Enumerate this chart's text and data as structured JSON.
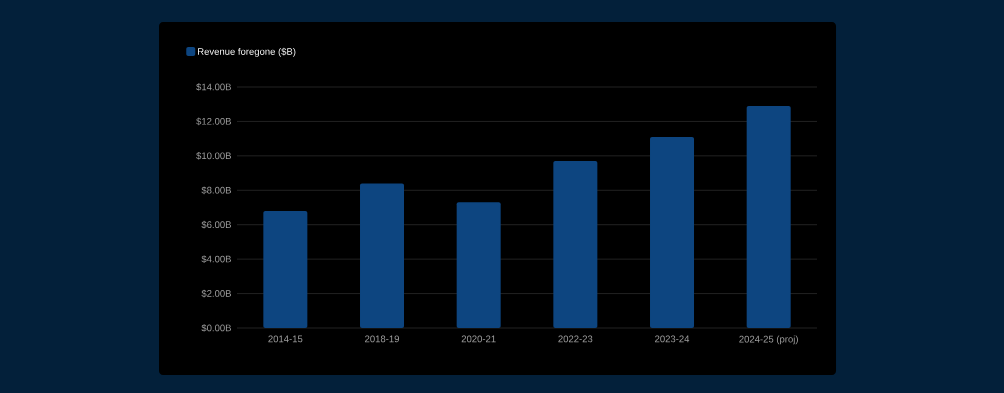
{
  "chart_data": {
    "type": "bar",
    "categories": [
      "2014-15",
      "2018-19",
      "2020-21",
      "2022-23",
      "2023-24",
      "2024-25 (proj)"
    ],
    "series": [
      {
        "name": "Revenue foregone ($B)",
        "color": "#0d4580",
        "values": [
          6.8,
          8.4,
          7.3,
          9.7,
          11.1,
          12.9
        ]
      }
    ],
    "ylim": [
      0,
      14
    ],
    "yticks": [
      {
        "value": 0,
        "label": "$0.00B"
      },
      {
        "value": 2,
        "label": "$2.00B"
      },
      {
        "value": 4,
        "label": "$4.00B"
      },
      {
        "value": 6,
        "label": "$6.00B"
      },
      {
        "value": 8,
        "label": "$8.00B"
      },
      {
        "value": 10,
        "label": "$10.00B"
      },
      {
        "value": 12,
        "label": "$12.00B"
      },
      {
        "value": 14,
        "label": "$14.00B"
      }
    ],
    "grid": "y",
    "legend": "top left"
  }
}
